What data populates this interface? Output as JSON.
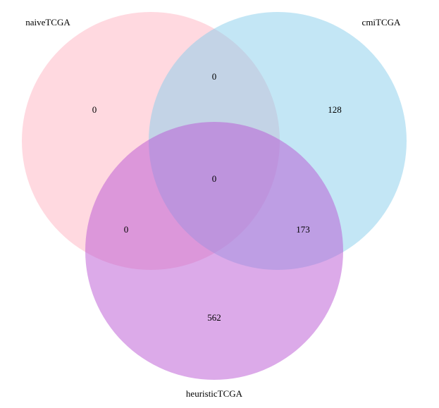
{
  "sets": [
    {
      "key": "naive",
      "label": "naiveTCGA",
      "color": "#FFC0CB"
    },
    {
      "key": "cmi",
      "label": "cmiTCGA",
      "color": "#87CEEB"
    },
    {
      "key": "heuristic",
      "label": "heuristicTCGA",
      "color": "#BA55D3"
    }
  ],
  "regions": {
    "naive_only": "0",
    "cmi_only": "128",
    "heuristic_only": "562",
    "naive_cmi": "0",
    "naive_heuristic": "0",
    "cmi_heuristic": "173",
    "all_three": "0"
  }
}
